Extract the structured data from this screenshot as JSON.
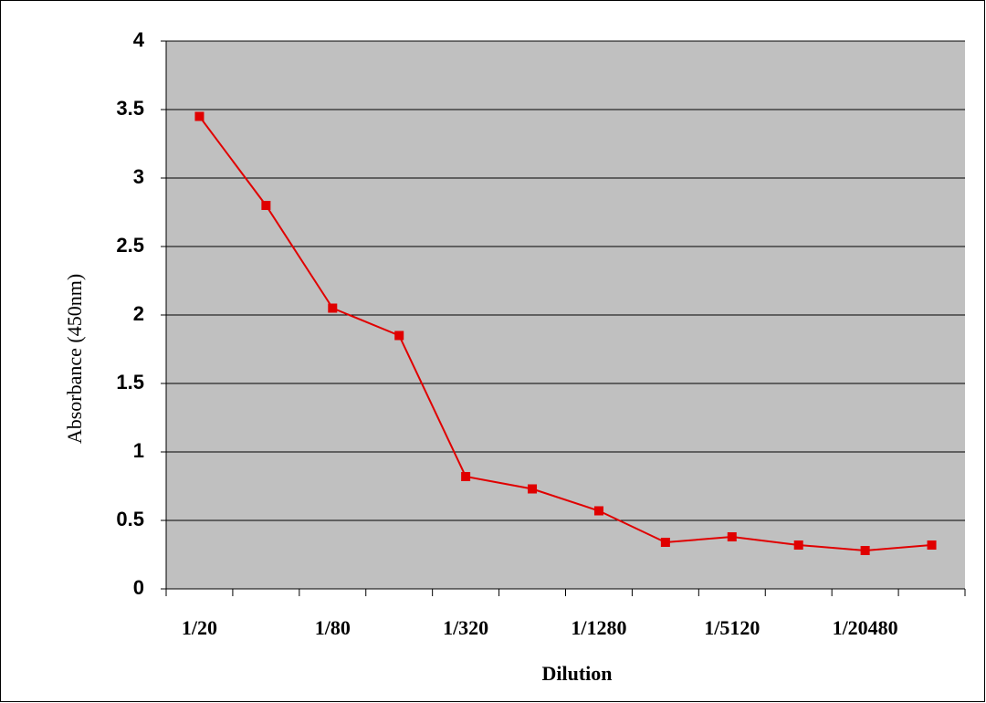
{
  "chart_data": {
    "type": "line",
    "x_label": "Dilution",
    "y_label": "Absorbance (450nm)",
    "categories": [
      "1/20",
      null,
      "1/80",
      null,
      "1/320",
      null,
      "1/1280",
      null,
      "1/5120",
      null,
      "1/20480",
      null
    ],
    "series": [
      {
        "color": "#e00000",
        "values": [
          3.45,
          2.8,
          2.05,
          1.85,
          0.82,
          0.73,
          0.57,
          0.34,
          0.38,
          0.32,
          0.28,
          0.32
        ]
      }
    ],
    "ylim": [
      0,
      4
    ],
    "yticks": [
      0,
      0.5,
      1,
      1.5,
      2,
      2.5,
      3,
      3.5,
      4
    ],
    "grid": true,
    "plot_background": "#c0c0c0"
  }
}
